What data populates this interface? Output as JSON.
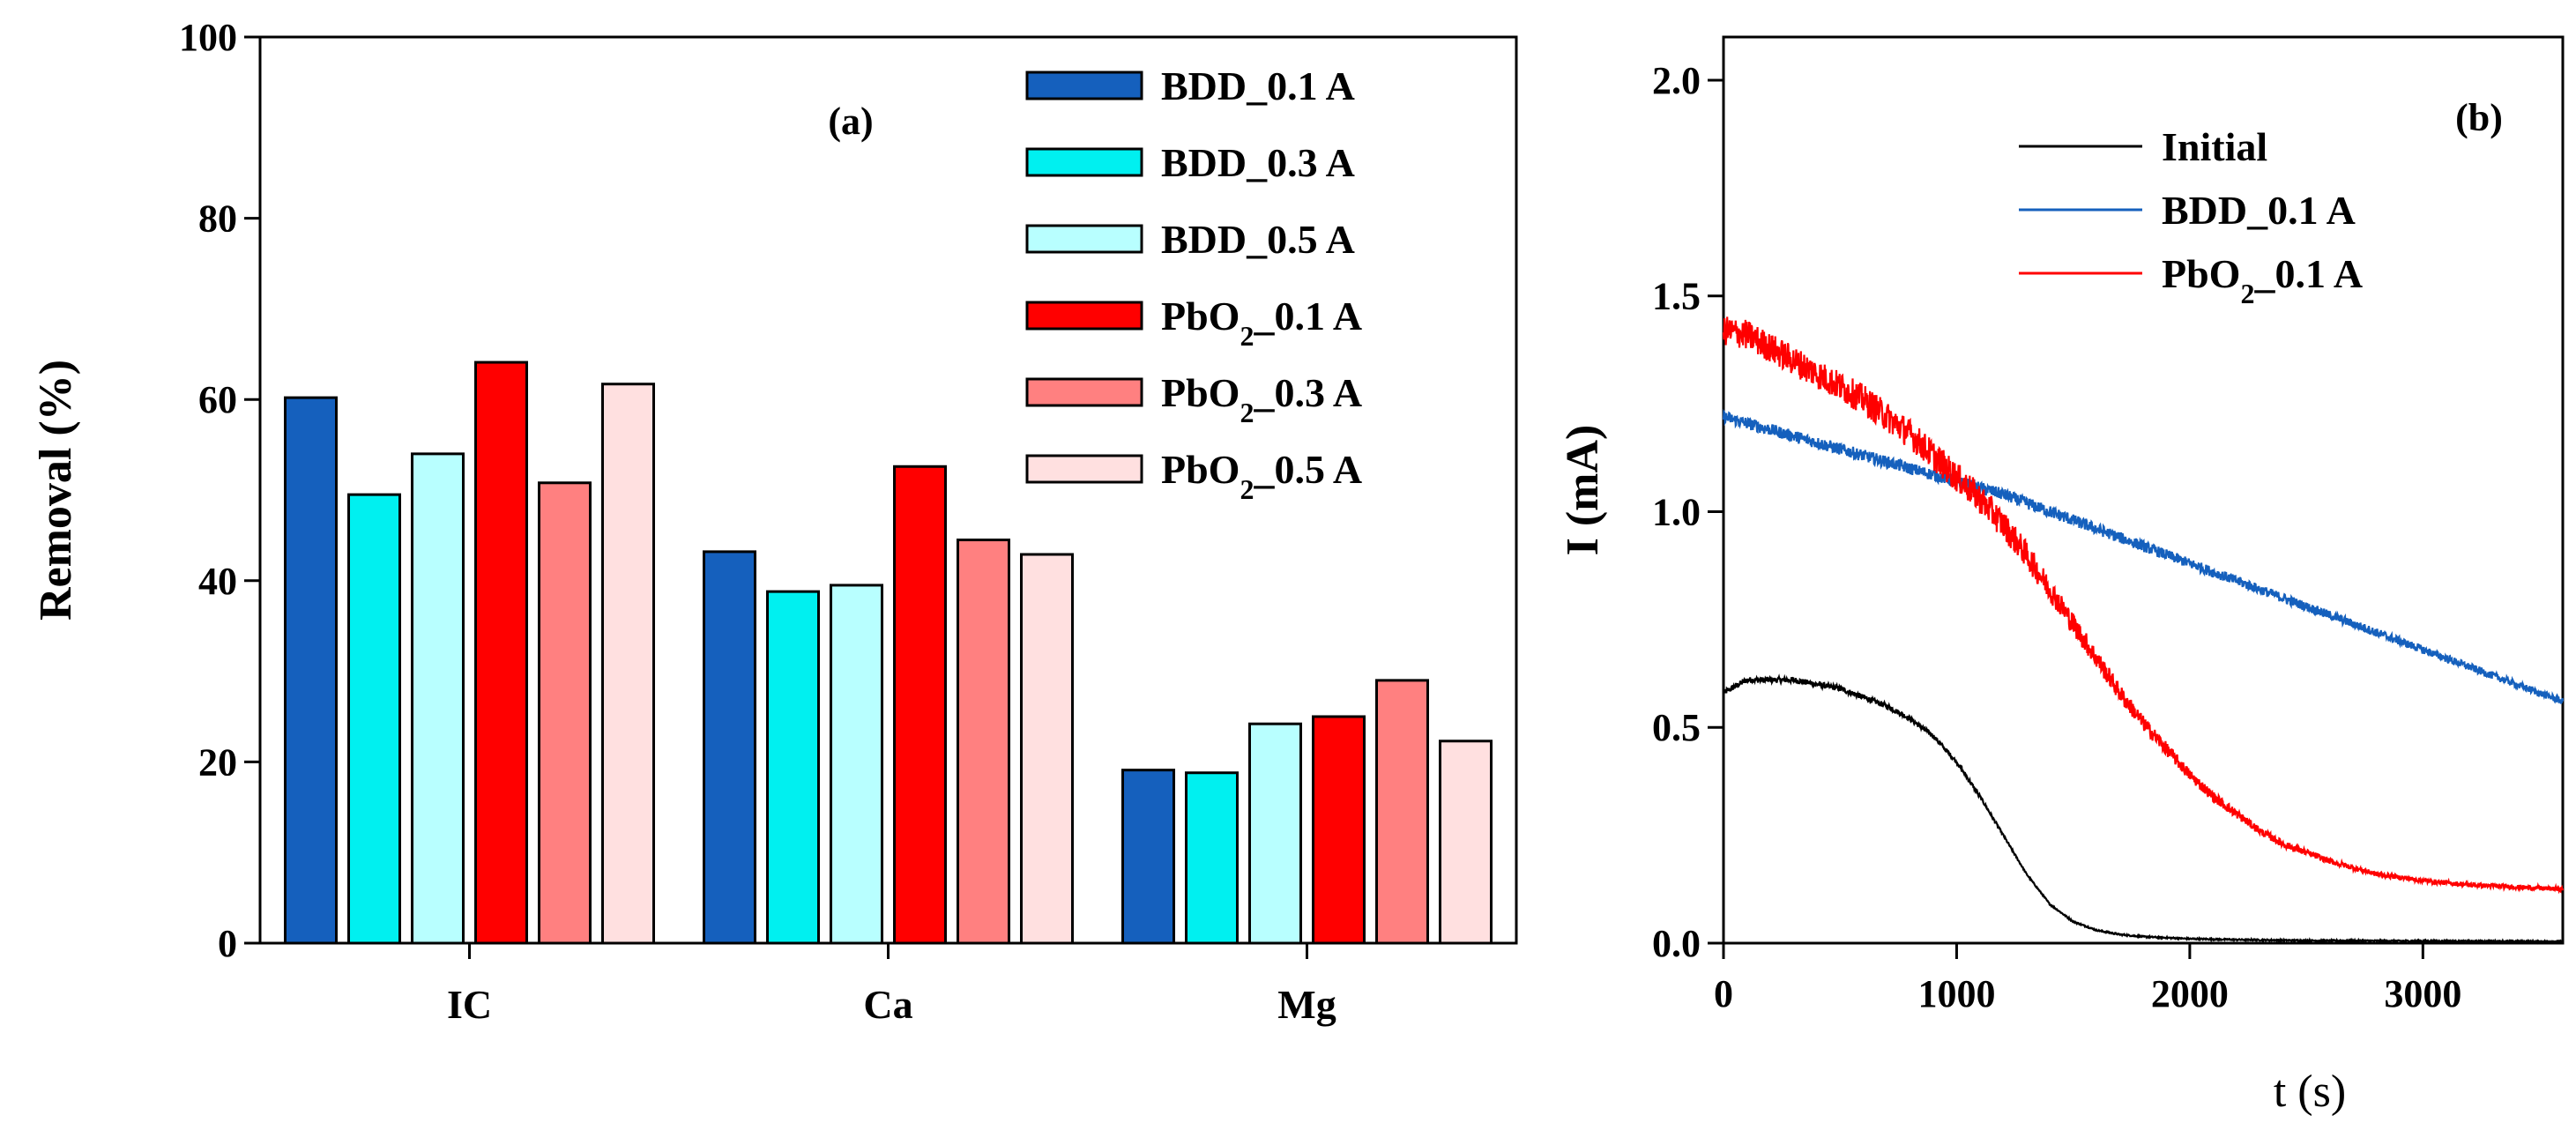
{
  "chart_data": [
    {
      "type": "bar",
      "panel_label": "(a)",
      "ylabel": "Removal (%)",
      "xlabel": "",
      "ylim": [
        0,
        100
      ],
      "yticks": [
        "0",
        "20",
        "40",
        "60",
        "80",
        "100"
      ],
      "categories": [
        "IC",
        "Ca",
        "Mg"
      ],
      "legend_position": "top-right",
      "series": [
        {
          "name": "BDD_0.1 A",
          "legend": {
            "base": "BDD_0.1 A",
            "sub": "",
            "rest": ""
          },
          "color": "#1560bd",
          "values": [
            60.2,
            43.2,
            19.1
          ]
        },
        {
          "name": "BDD_0.3 A",
          "legend": {
            "base": "BDD_0.3 A",
            "sub": "",
            "rest": ""
          },
          "color": "#00f0f0",
          "values": [
            49.5,
            38.8,
            18.8
          ]
        },
        {
          "name": "BDD_0.5 A",
          "legend": {
            "base": "BDD_0.5 A",
            "sub": "",
            "rest": ""
          },
          "color": "#b8ffff",
          "values": [
            54.0,
            39.5,
            24.2
          ]
        },
        {
          "name": "PbO2_0.1 A",
          "legend": {
            "base": "PbO",
            "sub": "2",
            "rest": "_0.1 A"
          },
          "color": "#ff0000",
          "values": [
            64.1,
            52.6,
            25.0
          ]
        },
        {
          "name": "PbO2_0.3 A",
          "legend": {
            "base": "PbO",
            "sub": "2",
            "rest": "_0.3 A"
          },
          "color": "#ff8080",
          "values": [
            50.8,
            44.5,
            29.0
          ]
        },
        {
          "name": "PbO2_0.5 A",
          "legend": {
            "base": "PbO",
            "sub": "2",
            "rest": "_0.5 A"
          },
          "color": "#ffe0e0",
          "values": [
            61.7,
            42.9,
            22.3
          ]
        }
      ]
    },
    {
      "type": "line",
      "panel_label": "(b)",
      "xlabel": "t (s)",
      "ylabel": "I (mA)",
      "xlim": [
        0,
        3600
      ],
      "ylim": [
        0,
        2.1
      ],
      "xticks": [
        "0",
        "1000",
        "2000",
        "3000"
      ],
      "yticks": [
        "0.0",
        "0.5",
        "1.0",
        "1.5",
        "2.0"
      ],
      "legend_position": "top-right",
      "series": [
        {
          "name": "Initial",
          "legend": {
            "base": "Initial",
            "sub": "",
            "rest": ""
          },
          "color": "#000000",
          "x": [
            0,
            100,
            200,
            300,
            400,
            500,
            600,
            700,
            800,
            900,
            1000,
            1100,
            1200,
            1300,
            1400,
            1500,
            1600,
            1700,
            1800,
            2000,
            2200,
            2500,
            3000,
            3600
          ],
          "y": [
            0.58,
            0.61,
            0.61,
            0.61,
            0.6,
            0.59,
            0.57,
            0.55,
            0.52,
            0.48,
            0.42,
            0.34,
            0.25,
            0.16,
            0.09,
            0.05,
            0.03,
            0.02,
            0.015,
            0.01,
            0.008,
            0.006,
            0.005,
            0.004
          ]
        },
        {
          "name": "BDD_0.1 A",
          "legend": {
            "base": "BDD_0.1 A",
            "sub": "",
            "rest": ""
          },
          "color": "#1560bd",
          "x": [
            0,
            200,
            400,
            600,
            800,
            1000,
            1200,
            1400,
            1600,
            1800,
            2000,
            2200,
            2400,
            2600,
            2800,
            3000,
            3200,
            3400,
            3600
          ],
          "y": [
            1.22,
            1.19,
            1.16,
            1.13,
            1.1,
            1.07,
            1.04,
            1.0,
            0.96,
            0.92,
            0.88,
            0.84,
            0.8,
            0.76,
            0.72,
            0.68,
            0.64,
            0.6,
            0.56
          ]
        },
        {
          "name": "PbO2_0.1 A",
          "legend": {
            "base": "PbO",
            "sub": "2",
            "rest": "_0.1 A"
          },
          "color": "#ff0000",
          "x": [
            0,
            100,
            200,
            300,
            400,
            500,
            600,
            700,
            800,
            900,
            1000,
            1100,
            1200,
            1300,
            1400,
            1500,
            1600,
            1700,
            1800,
            1900,
            2000,
            2100,
            2200,
            2300,
            2400,
            2600,
            2800,
            3000,
            3200,
            3400,
            3600
          ],
          "y": [
            1.42,
            1.41,
            1.38,
            1.35,
            1.32,
            1.29,
            1.26,
            1.22,
            1.18,
            1.13,
            1.08,
            1.03,
            0.97,
            0.9,
            0.82,
            0.74,
            0.66,
            0.58,
            0.51,
            0.45,
            0.39,
            0.34,
            0.3,
            0.26,
            0.23,
            0.19,
            0.16,
            0.145,
            0.135,
            0.13,
            0.125
          ]
        }
      ]
    }
  ]
}
